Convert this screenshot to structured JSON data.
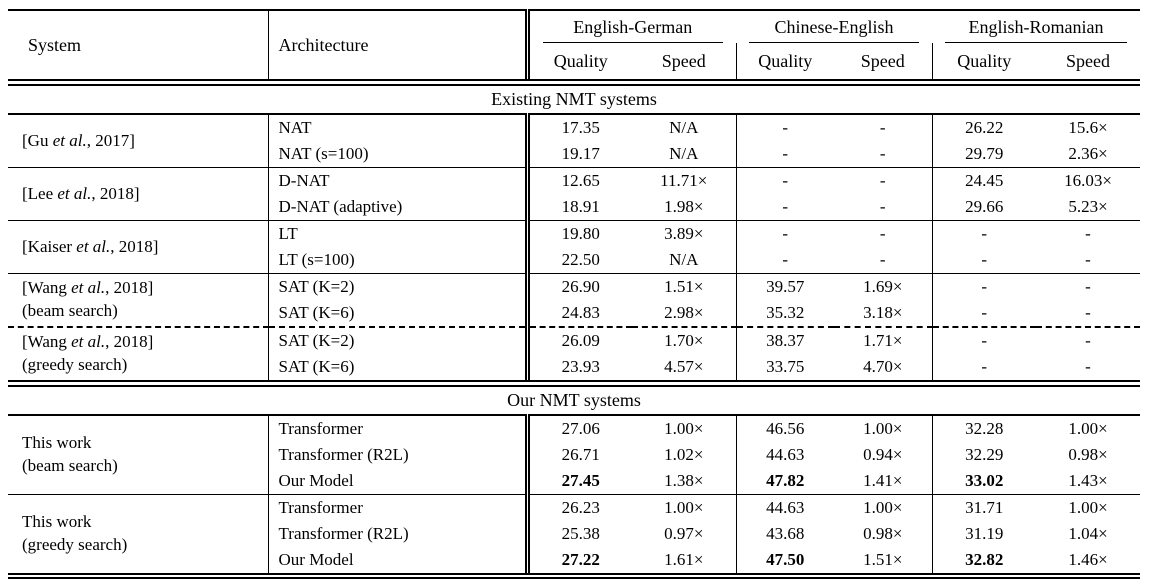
{
  "table": {
    "header": {
      "system": "System",
      "architecture": "Architecture",
      "groups": [
        "English-German",
        "Chinese-English",
        "English-Romanian"
      ],
      "subcols": [
        "Quality",
        "Speed"
      ]
    },
    "sections": [
      {
        "title": "Existing NMT systems",
        "groups": [
          {
            "system_lines": [
              "[Gu et al., 2017]"
            ],
            "rows": [
              {
                "arch": "NAT",
                "values": [
                  "17.35",
                  "N/A",
                  "-",
                  "-",
                  "26.22",
                  "15.6×"
                ],
                "bold": []
              },
              {
                "arch": "NAT (s=100)",
                "values": [
                  "19.17",
                  "N/A",
                  "-",
                  "-",
                  "29.79",
                  "2.36×"
                ],
                "bold": []
              }
            ]
          },
          {
            "system_lines": [
              "[Lee et al., 2018]"
            ],
            "rows": [
              {
                "arch": "D-NAT",
                "values": [
                  "12.65",
                  "11.71×",
                  "-",
                  "-",
                  "24.45",
                  "16.03×"
                ],
                "bold": []
              },
              {
                "arch": "D-NAT (adaptive)",
                "values": [
                  "18.91",
                  "1.98×",
                  "-",
                  "-",
                  "29.66",
                  "5.23×"
                ],
                "bold": []
              }
            ]
          },
          {
            "system_lines": [
              "[Kaiser et al., 2018]"
            ],
            "rows": [
              {
                "arch": "LT",
                "values": [
                  "19.80",
                  "3.89×",
                  "-",
                  "-",
                  "-",
                  "-"
                ],
                "bold": []
              },
              {
                "arch": "LT (s=100)",
                "values": [
                  "22.50",
                  "N/A",
                  "-",
                  "-",
                  "-",
                  "-"
                ],
                "bold": []
              }
            ]
          },
          {
            "system_lines": [
              "[Wang et al., 2018]",
              "(beam search)"
            ],
            "rows": [
              {
                "arch": "SAT (K=2)",
                "values": [
                  "26.90",
                  "1.51×",
                  "39.57",
                  "1.69×",
                  "-",
                  "-"
                ],
                "bold": []
              },
              {
                "arch": "SAT (K=6)",
                "values": [
                  "24.83",
                  "2.98×",
                  "35.32",
                  "3.18×",
                  "-",
                  "-"
                ],
                "bold": []
              }
            ]
          },
          {
            "system_lines": [
              "[Wang et al., 2018]",
              "(greedy search)"
            ],
            "separator": "dashed",
            "rows": [
              {
                "arch": "SAT (K=2)",
                "values": [
                  "26.09",
                  "1.70×",
                  "38.37",
                  "1.71×",
                  "-",
                  "-"
                ],
                "bold": []
              },
              {
                "arch": "SAT (K=6)",
                "values": [
                  "23.93",
                  "4.57×",
                  "33.75",
                  "4.70×",
                  "-",
                  "-"
                ],
                "bold": []
              }
            ]
          }
        ]
      },
      {
        "title": "Our NMT systems",
        "groups": [
          {
            "system_lines": [
              "This work",
              "(beam search)"
            ],
            "rows": [
              {
                "arch": "Transformer",
                "values": [
                  "27.06",
                  "1.00×",
                  "46.56",
                  "1.00×",
                  "32.28",
                  "1.00×"
                ],
                "bold": []
              },
              {
                "arch": "Transformer (R2L)",
                "values": [
                  "26.71",
                  "1.02×",
                  "44.63",
                  "0.94×",
                  "32.29",
                  "0.98×"
                ],
                "bold": []
              },
              {
                "arch": "Our Model",
                "values": [
                  "27.45",
                  "1.38×",
                  "47.82",
                  "1.41×",
                  "33.02",
                  "1.43×"
                ],
                "bold": [
                  0,
                  2,
                  4
                ]
              }
            ]
          },
          {
            "system_lines": [
              "This work",
              "(greedy search)"
            ],
            "rows": [
              {
                "arch": "Transformer",
                "values": [
                  "26.23",
                  "1.00×",
                  "44.63",
                  "1.00×",
                  "31.71",
                  "1.00×"
                ],
                "bold": []
              },
              {
                "arch": "Transformer (R2L)",
                "values": [
                  "25.38",
                  "0.97×",
                  "43.68",
                  "0.98×",
                  "31.19",
                  "1.04×"
                ],
                "bold": []
              },
              {
                "arch": "Our Model",
                "values": [
                  "27.22",
                  "1.61×",
                  "47.50",
                  "1.51×",
                  "32.82",
                  "1.46×"
                ],
                "bold": [
                  0,
                  2,
                  4
                ]
              }
            ]
          }
        ]
      }
    ]
  }
}
